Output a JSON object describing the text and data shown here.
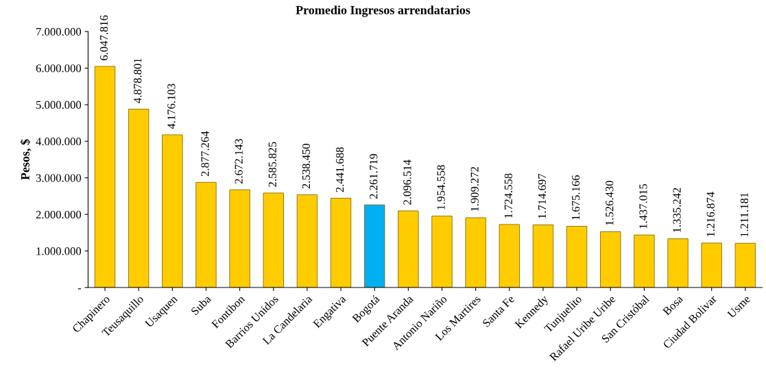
{
  "chart_data": {
    "type": "bar",
    "title": "Promedio Ingresos arrendatarios",
    "ylabel": "Pesos, $",
    "categories": [
      "Chapinero",
      "Teusaquillo",
      "Usaquen",
      "Suba",
      "Fontibon",
      "Barrios Unidos",
      "La Candelaria",
      "Engativa",
      "Bogotá",
      "Puente Aranda",
      "Antonio Nariño",
      "Los Martires",
      "Santa Fe",
      "Kennedy",
      "Tunjuelito",
      "Rafael Uribe Uribe",
      "San Cristóbal",
      "Bosa",
      "Ciudad Bolivar",
      "Usme"
    ],
    "values": [
      6047816,
      4878801,
      4176103,
      2877264,
      2672143,
      2585825,
      2538450,
      2441688,
      2261719,
      2096514,
      1954558,
      1909272,
      1724558,
      1714697,
      1675166,
      1526430,
      1437015,
      1335242,
      1216874,
      1211181
    ],
    "value_labels": [
      "6.047.816",
      "4.878.801",
      "4.176.103",
      "2.877.264",
      "2.672.143",
      "2.585.825",
      "2.538.450",
      "2.441.688",
      "2.261.719",
      "2.096.514",
      "1.954.558",
      "1.909.272",
      "1.724.558",
      "1.714.697",
      "1.675.166",
      "1.526.430",
      "1.437.015",
      "1.335.242",
      "1.216.874",
      "1.211.181"
    ],
    "colors": [
      "#ffcc00",
      "#ffcc00",
      "#ffcc00",
      "#ffcc00",
      "#ffcc00",
      "#ffcc00",
      "#ffcc00",
      "#ffcc00",
      "#00b0f0",
      "#ffcc00",
      "#ffcc00",
      "#ffcc00",
      "#ffcc00",
      "#ffcc00",
      "#ffcc00",
      "#ffcc00",
      "#ffcc00",
      "#ffcc00",
      "#ffcc00",
      "#ffcc00"
    ],
    "ylim": [
      0,
      7000000
    ],
    "yticks": [
      {
        "value": 0,
        "label": "-"
      },
      {
        "value": 1000000,
        "label": "1.000.000"
      },
      {
        "value": 2000000,
        "label": "2.000.000"
      },
      {
        "value": 3000000,
        "label": "3.000.000"
      },
      {
        "value": 4000000,
        "label": "4.000.000"
      },
      {
        "value": 5000000,
        "label": "5.000.000"
      },
      {
        "value": 6000000,
        "label": "6.000.000"
      },
      {
        "value": 7000000,
        "label": "7.000.000"
      }
    ],
    "grid": false,
    "legend": false
  }
}
